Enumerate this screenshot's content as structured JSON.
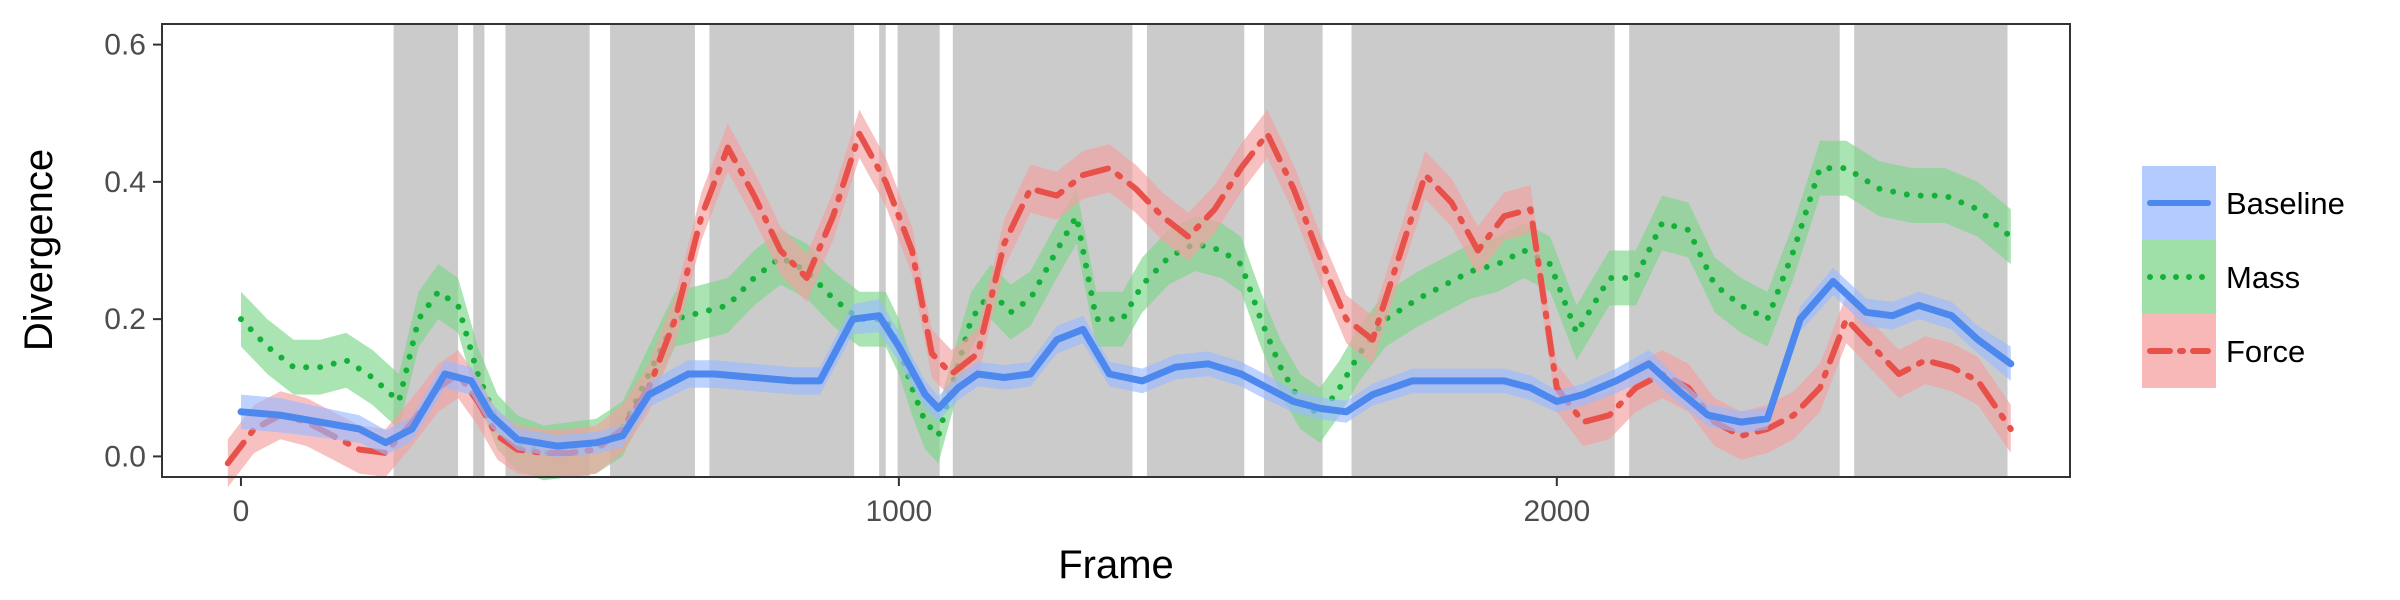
{
  "chart_data": {
    "type": "line",
    "xlabel": "Frame",
    "ylabel": "Divergence",
    "xlim": [
      -120,
      2780
    ],
    "ylim": [
      -0.03,
      0.63
    ],
    "x_ticks": [
      0,
      1000,
      2000
    ],
    "x_tick_labels": [
      "0",
      "1000",
      "2000"
    ],
    "y_ticks": [
      0.0,
      0.2,
      0.4,
      0.6
    ],
    "y_tick_labels": [
      "0.0",
      "0.2",
      "0.4",
      "0.6"
    ],
    "grid": false,
    "legend_position": "right",
    "shaded_intervals": [
      [
        232,
        330
      ],
      [
        353,
        370
      ],
      [
        402,
        530
      ],
      [
        561,
        690
      ],
      [
        712,
        932
      ],
      [
        970,
        980
      ],
      [
        998,
        1062
      ],
      [
        1082,
        1355
      ],
      [
        1377,
        1525
      ],
      [
        1555,
        1644
      ],
      [
        1688,
        2088
      ],
      [
        2110,
        2430
      ],
      [
        2452,
        2685
      ]
    ],
    "series": [
      {
        "name": "Baseline",
        "color": "#4d88ee",
        "fill_color": "#99baff",
        "line_style": "solid",
        "x": [
          0,
          60,
          120,
          180,
          220,
          260,
          310,
          350,
          380,
          420,
          480,
          540,
          580,
          620,
          680,
          720,
          780,
          840,
          880,
          930,
          970,
          1000,
          1040,
          1060,
          1090,
          1120,
          1160,
          1200,
          1240,
          1280,
          1320,
          1370,
          1420,
          1470,
          1520,
          1560,
          1600,
          1640,
          1680,
          1720,
          1780,
          1820,
          1870,
          1920,
          1960,
          2000,
          2040,
          2090,
          2140,
          2180,
          2230,
          2280,
          2320,
          2370,
          2420,
          2470,
          2510,
          2550,
          2600,
          2640,
          2690
        ],
        "y": [
          0.065,
          0.06,
          0.05,
          0.04,
          0.02,
          0.04,
          0.12,
          0.11,
          0.06,
          0.025,
          0.015,
          0.02,
          0.03,
          0.09,
          0.12,
          0.12,
          0.115,
          0.11,
          0.11,
          0.2,
          0.205,
          0.16,
          0.09,
          0.07,
          0.1,
          0.12,
          0.115,
          0.12,
          0.17,
          0.185,
          0.12,
          0.11,
          0.13,
          0.135,
          0.12,
          0.1,
          0.08,
          0.07,
          0.065,
          0.09,
          0.11,
          0.11,
          0.11,
          0.11,
          0.1,
          0.08,
          0.09,
          0.11,
          0.135,
          0.1,
          0.06,
          0.05,
          0.055,
          0.2,
          0.255,
          0.21,
          0.205,
          0.22,
          0.205,
          0.17,
          0.135
        ],
        "band": [
          0.025,
          0.025,
          0.022,
          0.02,
          0.018,
          0.018,
          0.02,
          0.02,
          0.018,
          0.016,
          0.016,
          0.016,
          0.016,
          0.018,
          0.02,
          0.02,
          0.02,
          0.02,
          0.02,
          0.022,
          0.024,
          0.022,
          0.02,
          0.018,
          0.018,
          0.018,
          0.018,
          0.018,
          0.02,
          0.02,
          0.018,
          0.018,
          0.018,
          0.018,
          0.018,
          0.018,
          0.016,
          0.016,
          0.016,
          0.016,
          0.018,
          0.018,
          0.018,
          0.018,
          0.018,
          0.016,
          0.016,
          0.018,
          0.02,
          0.018,
          0.016,
          0.016,
          0.016,
          0.018,
          0.02,
          0.02,
          0.02,
          0.02,
          0.02,
          0.02,
          0.025
        ]
      },
      {
        "name": "Mass",
        "color": "#13b13a",
        "fill_color": "#7dd589",
        "line_style": "dotted",
        "x": [
          0,
          40,
          80,
          120,
          160,
          200,
          240,
          270,
          300,
          330,
          360,
          390,
          420,
          460,
          500,
          540,
          580,
          620,
          660,
          700,
          740,
          780,
          820,
          860,
          900,
          940,
          980,
          1000,
          1020,
          1040,
          1060,
          1080,
          1110,
          1140,
          1170,
          1200,
          1240,
          1270,
          1300,
          1340,
          1370,
          1410,
          1450,
          1490,
          1520,
          1550,
          1580,
          1610,
          1640,
          1670,
          1700,
          1740,
          1790,
          1830,
          1870,
          1910,
          1950,
          1990,
          2030,
          2080,
          2120,
          2160,
          2200,
          2240,
          2280,
          2320,
          2360,
          2400,
          2440,
          2490,
          2540,
          2590,
          2640,
          2690
        ],
        "y": [
          0.2,
          0.16,
          0.13,
          0.13,
          0.14,
          0.115,
          0.08,
          0.2,
          0.24,
          0.22,
          0.12,
          0.05,
          0.02,
          0.005,
          0.01,
          0.015,
          0.04,
          0.12,
          0.2,
          0.21,
          0.22,
          0.26,
          0.29,
          0.27,
          0.23,
          0.2,
          0.2,
          0.16,
          0.1,
          0.05,
          0.03,
          0.1,
          0.2,
          0.24,
          0.21,
          0.23,
          0.3,
          0.35,
          0.2,
          0.2,
          0.25,
          0.29,
          0.31,
          0.3,
          0.28,
          0.2,
          0.13,
          0.08,
          0.06,
          0.1,
          0.15,
          0.2,
          0.23,
          0.25,
          0.27,
          0.28,
          0.3,
          0.28,
          0.18,
          0.26,
          0.26,
          0.34,
          0.33,
          0.25,
          0.22,
          0.2,
          0.3,
          0.42,
          0.42,
          0.39,
          0.38,
          0.38,
          0.36,
          0.32
        ]
      },
      {
        "name": "Force",
        "color": "#e8504a",
        "fill_color": "#f5a0a0",
        "line_style": "dashdot",
        "x": [
          -20,
          20,
          60,
          100,
          140,
          180,
          220,
          260,
          300,
          330,
          360,
          390,
          420,
          460,
          500,
          540,
          580,
          620,
          660,
          700,
          740,
          780,
          820,
          860,
          900,
          940,
          980,
          1020,
          1050,
          1080,
          1120,
          1160,
          1200,
          1240,
          1280,
          1320,
          1360,
          1400,
          1440,
          1480,
          1520,
          1560,
          1600,
          1640,
          1680,
          1720,
          1760,
          1800,
          1840,
          1880,
          1920,
          1960,
          2000,
          2040,
          2080,
          2120,
          2160,
          2200,
          2240,
          2280,
          2320,
          2360,
          2400,
          2440,
          2480,
          2520,
          2560,
          2600,
          2640,
          2690
        ],
        "y": [
          -0.01,
          0.04,
          0.06,
          0.05,
          0.03,
          0.01,
          0.005,
          0.05,
          0.1,
          0.12,
          0.08,
          0.03,
          0.01,
          0.005,
          0.005,
          0.01,
          0.04,
          0.1,
          0.2,
          0.35,
          0.45,
          0.38,
          0.3,
          0.26,
          0.35,
          0.47,
          0.4,
          0.3,
          0.15,
          0.12,
          0.15,
          0.31,
          0.39,
          0.38,
          0.41,
          0.42,
          0.39,
          0.35,
          0.32,
          0.36,
          0.42,
          0.47,
          0.39,
          0.29,
          0.2,
          0.17,
          0.29,
          0.41,
          0.37,
          0.3,
          0.35,
          0.36,
          0.1,
          0.05,
          0.06,
          0.1,
          0.12,
          0.1,
          0.05,
          0.03,
          0.04,
          0.06,
          0.1,
          0.2,
          0.16,
          0.12,
          0.14,
          0.13,
          0.11,
          0.04
        ]
      }
    ]
  }
}
